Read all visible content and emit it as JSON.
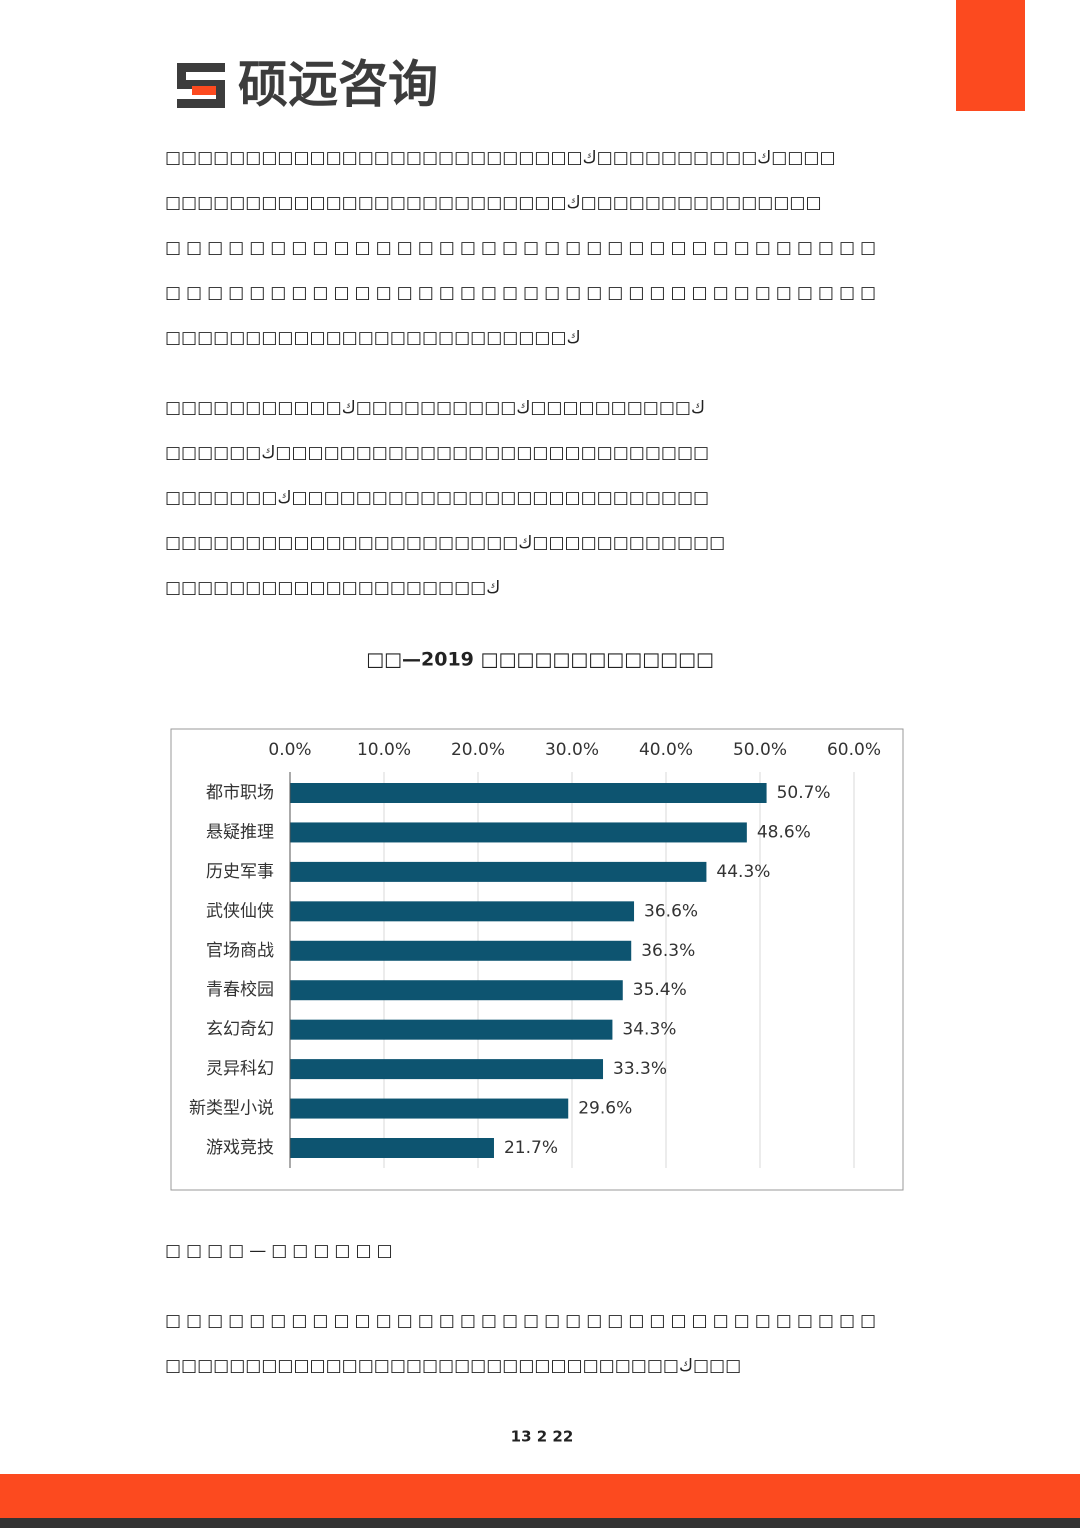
{
  "logo": "硕远咨询",
  "paragraphs": [
    [
      "□□□□□□□□□□□□□□□□□□□□□□□□□□ك□□□□□□□□□□ك□□□□",
      "□□□□□□□□□□□□□□□□□□□□□□□□□ك□□□□□□□□□□□□□□□",
      "□□□□□□□□□□□□□□□□□□□□□□□□□□□□□□□□□□",
      "□□□□□□□□□□□□□□□□□□□□□□□□□□□□□□□□□□",
      "□□□□□□□□□□□□□□□□□□□□□□□□□ك"
    ],
    [
      "□□□□□□□□□□□ك□□□□□□□□□□ك□□□□□□□□□□ك",
      "□□□□□□ك□□□□□□□□□□□□□□□□□□□□□□□□□□□",
      "□□□□□□□ك□□□□□□□□□□□□□□□□□□□□□□□□□□",
      "□□□□□□□□□□□□□□□□□□□□□□ك□□□□□□□□□□□□",
      "□□□□□□□□□□□□□□□□□□□□ك"
    ]
  ],
  "chart_data": {
    "type": "bar",
    "orientation": "horizontal",
    "title": "□□—2019 □□□□□□□□□□□□□",
    "categories": [
      "都市职场",
      "悬疑推理",
      "历史军事",
      "武侠仙侠",
      "官场商战",
      "青春校园",
      "玄幻奇幻",
      "灵异科幻",
      "新类型小说",
      "游戏竞技"
    ],
    "values": [
      50.7,
      48.6,
      44.3,
      36.6,
      36.3,
      35.4,
      34.3,
      33.3,
      29.6,
      21.7
    ],
    "value_labels": [
      "50.7%",
      "48.6%",
      "44.3%",
      "36.6%",
      "36.3%",
      "35.4%",
      "34.3%",
      "33.3%",
      "29.6%",
      "21.7%"
    ],
    "color": "#0d5470",
    "xlim": [
      0,
      60
    ],
    "xticks": [
      {
        "value": 0,
        "label": "0.0%"
      },
      {
        "value": 10,
        "label": "10.0%"
      },
      {
        "value": 20,
        "label": "20.0%"
      },
      {
        "value": 30,
        "label": "30.0%"
      },
      {
        "value": 40,
        "label": "40.0%"
      },
      {
        "value": 50,
        "label": "50.0%"
      },
      {
        "value": 60,
        "label": "60.0%"
      }
    ],
    "grid": true
  },
  "heading": "□□□□—□□□□□□",
  "paragraph3": [
    "□□□□□□□□□□□□□□□□□□□□□□□□□□□□□□□□□□",
    "□□□□□□□□□□□□□□□□□□□□□□□□□□□□□□□□ك□□□"
  ],
  "page_number": "13 2 22"
}
